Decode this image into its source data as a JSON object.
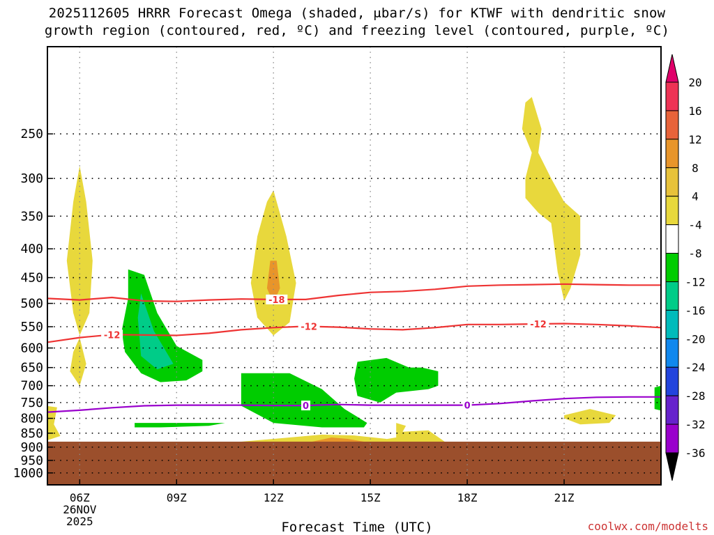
{
  "title": {
    "line1": "2025112605 HRRR Forecast Omega (shaded, μbar/s) for KTWF with dendritic snow",
    "line2": "growth region (contoured, red, ºC) and freezing level (contoured, purple, ºC)"
  },
  "xaxis_label": "Forecast Time (UTC)",
  "credit": "coolwx.com/modelts",
  "chart_data": {
    "type": "heatmap",
    "title": "2025112605 HRRR Forecast Omega (shaded, μbar/s) for KTWF with dendritic snow growth region (contoured, red, ºC) and freezing level (contoured, purple, ºC)",
    "xlabel": "Forecast Time (UTC)",
    "ylabel": "",
    "xlim_hours": [
      5,
      24
    ],
    "y_scale": "log",
    "ylim": [
      1050,
      175
    ],
    "y_ticks": [
      250,
      300,
      350,
      400,
      450,
      500,
      550,
      600,
      650,
      700,
      750,
      800,
      850,
      900,
      950,
      1000
    ],
    "x_ticks": [
      {
        "hour": 6,
        "label": "06Z",
        "sub": [
          "26NOV",
          "2025"
        ]
      },
      {
        "hour": 9,
        "label": "09Z"
      },
      {
        "hour": 12,
        "label": "12Z"
      },
      {
        "hour": 15,
        "label": "15Z"
      },
      {
        "hour": 18,
        "label": "18Z"
      },
      {
        "hour": 21,
        "label": "21Z"
      }
    ],
    "grid": true,
    "colorbar": {
      "levels": [
        {
          "label": "20",
          "color": "#ee3355"
        },
        {
          "label": "16",
          "color": "#e8633a"
        },
        {
          "label": "12",
          "color": "#e8952a"
        },
        {
          "label": "8",
          "color": "#e8c23a"
        },
        {
          "label": "4",
          "color": "#e8d83c"
        },
        {
          "label": "-4",
          "color": "#ffffff"
        },
        {
          "label": "-8",
          "color": "#00cc00"
        },
        {
          "label": "-12",
          "color": "#00cc88"
        },
        {
          "label": "-16",
          "color": "#00bbbb"
        },
        {
          "label": "-20",
          "color": "#1188ee"
        },
        {
          "label": "-24",
          "color": "#2244dd"
        },
        {
          "label": "-28",
          "color": "#6622cc"
        },
        {
          "label": "-32",
          "color": "#9900cc"
        },
        {
          "label": "-36",
          "color": "#aaaaaa"
        }
      ],
      "top_color": "#e0006a",
      "bottom_color": "#000000",
      "placement": "right"
    },
    "surface": {
      "color": "#9b4f2c",
      "pressure": 880
    },
    "omega_regions": [
      {
        "name": "positive",
        "color": "#e8d83c",
        "points": [
          [
            6.0,
            285
          ],
          [
            6.2,
            330
          ],
          [
            6.4,
            420
          ],
          [
            6.3,
            520
          ],
          [
            6.0,
            570
          ],
          [
            5.8,
            520
          ],
          [
            5.6,
            420
          ],
          [
            5.8,
            330
          ]
        ]
      },
      {
        "name": "positive",
        "color": "#e8d83c",
        "points": [
          [
            6.0,
            575
          ],
          [
            6.2,
            640
          ],
          [
            6.0,
            700
          ],
          [
            5.7,
            660
          ],
          [
            5.8,
            610
          ]
        ]
      },
      {
        "name": "positive",
        "color": "#e8d83c",
        "points": [
          [
            12.0,
            315
          ],
          [
            12.4,
            380
          ],
          [
            12.7,
            460
          ],
          [
            12.5,
            540
          ],
          [
            12.0,
            570
          ],
          [
            11.5,
            530
          ],
          [
            11.3,
            460
          ],
          [
            11.5,
            380
          ],
          [
            11.8,
            330
          ]
        ]
      },
      {
        "name": "positive",
        "color": "#e8952a",
        "points": [
          [
            11.9,
            420
          ],
          [
            12.1,
            420
          ],
          [
            12.2,
            470
          ],
          [
            12.0,
            500
          ],
          [
            11.8,
            470
          ]
        ]
      },
      {
        "name": "positive",
        "color": "#e8d83c",
        "points": [
          [
            20.0,
            215
          ],
          [
            20.3,
            245
          ],
          [
            20.2,
            270
          ],
          [
            20.6,
            300
          ],
          [
            21.0,
            330
          ],
          [
            21.5,
            350
          ],
          [
            21.5,
            410
          ],
          [
            21.2,
            470
          ],
          [
            21.0,
            495
          ],
          [
            20.8,
            440
          ],
          [
            20.6,
            360
          ],
          [
            20.2,
            345
          ],
          [
            19.8,
            325
          ],
          [
            19.8,
            300
          ],
          [
            20.0,
            270
          ],
          [
            19.7,
            245
          ],
          [
            19.8,
            220
          ]
        ]
      },
      {
        "name": "positive",
        "color": "#e8d83c",
        "points": [
          [
            21.0,
            790
          ],
          [
            21.8,
            770
          ],
          [
            22.6,
            790
          ],
          [
            22.4,
            815
          ],
          [
            21.5,
            820
          ],
          [
            21.0,
            800
          ]
        ]
      },
      {
        "name": "positive",
        "color": "#e8d83c",
        "points": [
          [
            4.95,
            760
          ],
          [
            5.3,
            765
          ],
          [
            5.2,
            820
          ],
          [
            5.4,
            860
          ],
          [
            5.0,
            875
          ]
        ]
      },
      {
        "name": "positive",
        "color": "#e8d83c",
        "points": [
          [
            15.8,
            815
          ],
          [
            16.1,
            825
          ],
          [
            16.0,
            845
          ],
          [
            16.8,
            840
          ],
          [
            17.3,
            880
          ],
          [
            15.0,
            880
          ],
          [
            15.8,
            865
          ]
        ]
      },
      {
        "name": "positive",
        "color": "#e8d83c",
        "points": [
          [
            11.0,
            880
          ],
          [
            12.5,
            865
          ],
          [
            13.5,
            855
          ],
          [
            14.5,
            858
          ],
          [
            15.5,
            870
          ],
          [
            15.5,
            880
          ]
        ]
      },
      {
        "name": "positive",
        "color": "#e8952a",
        "points": [
          [
            13.2,
            880
          ],
          [
            13.8,
            865
          ],
          [
            14.3,
            870
          ],
          [
            14.8,
            880
          ]
        ]
      },
      {
        "name": "negative",
        "color": "#00cc00",
        "points": [
          [
            7.5,
            435
          ],
          [
            8.0,
            445
          ],
          [
            8.4,
            520
          ],
          [
            9.0,
            595
          ],
          [
            9.8,
            630
          ],
          [
            9.8,
            660
          ],
          [
            9.3,
            685
          ],
          [
            8.5,
            690
          ],
          [
            7.9,
            665
          ],
          [
            7.4,
            610
          ],
          [
            7.3,
            560
          ],
          [
            7.5,
            490
          ]
        ]
      },
      {
        "name": "negative",
        "color": "#00cc88",
        "points": [
          [
            7.9,
            480
          ],
          [
            8.3,
            560
          ],
          [
            8.9,
            640
          ],
          [
            8.4,
            655
          ],
          [
            7.9,
            620
          ],
          [
            7.8,
            530
          ]
        ]
      },
      {
        "name": "negative",
        "color": "#00cc00",
        "points": [
          [
            11.0,
            665
          ],
          [
            12.5,
            665
          ],
          [
            13.5,
            710
          ],
          [
            14.2,
            770
          ],
          [
            14.9,
            815
          ],
          [
            14.8,
            830
          ],
          [
            13.5,
            830
          ],
          [
            12.0,
            815
          ],
          [
            11.0,
            760
          ]
        ]
      },
      {
        "name": "negative",
        "color": "#00cc00",
        "points": [
          [
            14.6,
            635
          ],
          [
            15.5,
            625
          ],
          [
            16.2,
            650
          ],
          [
            16.6,
            650
          ],
          [
            17.1,
            660
          ],
          [
            17.1,
            700
          ],
          [
            16.8,
            710
          ],
          [
            15.8,
            720
          ],
          [
            15.3,
            750
          ],
          [
            14.6,
            730
          ],
          [
            14.5,
            680
          ]
        ]
      },
      {
        "name": "negative",
        "color": "#00cc00",
        "points": [
          [
            7.7,
            815
          ],
          [
            9.5,
            815
          ],
          [
            10.5,
            815
          ],
          [
            10.0,
            825
          ],
          [
            8.5,
            830
          ],
          [
            7.7,
            830
          ]
        ]
      },
      {
        "name": "negative",
        "color": "#00cc00",
        "points": [
          [
            23.8,
            705
          ],
          [
            24.0,
            700
          ],
          [
            24.0,
            775
          ],
          [
            23.8,
            770
          ]
        ]
      }
    ],
    "isotherms": [
      {
        "name": "-18",
        "color": "#ee3333",
        "points": [
          [
            5,
            490
          ],
          [
            6,
            493
          ],
          [
            7,
            488
          ],
          [
            8,
            495
          ],
          [
            9,
            496
          ],
          [
            10,
            493
          ],
          [
            11,
            491
          ],
          [
            12,
            492
          ],
          [
            13,
            492
          ],
          [
            14,
            484
          ],
          [
            15,
            478
          ],
          [
            16,
            476
          ],
          [
            17,
            472
          ],
          [
            18,
            466
          ],
          [
            19,
            464
          ],
          [
            20,
            463
          ],
          [
            21,
            462
          ],
          [
            22,
            463
          ],
          [
            23,
            464
          ],
          [
            24,
            464
          ]
        ],
        "labels": [
          {
            "x": 12.1,
            "y": 492,
            "text": "-18"
          }
        ]
      },
      {
        "name": "-12",
        "color": "#ee3333",
        "points": [
          [
            5,
            586
          ],
          [
            6,
            575
          ],
          [
            7,
            568
          ],
          [
            8,
            569
          ],
          [
            9,
            570
          ],
          [
            10,
            565
          ],
          [
            11,
            557
          ],
          [
            12,
            552
          ],
          [
            13,
            549
          ],
          [
            14,
            551
          ],
          [
            15,
            555
          ],
          [
            16,
            557
          ],
          [
            17,
            552
          ],
          [
            18,
            545
          ],
          [
            19,
            545
          ],
          [
            20,
            544
          ],
          [
            21,
            543
          ],
          [
            22,
            545
          ],
          [
            23,
            548
          ],
          [
            24,
            552
          ]
        ],
        "labels": [
          {
            "x": 7.0,
            "y": 568,
            "text": "-12"
          },
          {
            "x": 13.1,
            "y": 549,
            "text": "-12"
          },
          {
            "x": 20.2,
            "y": 544,
            "text": "-12"
          }
        ]
      }
    ],
    "freezing_level": {
      "name": "0",
      "color": "#9900cc",
      "points": [
        [
          5,
          780
        ],
        [
          6,
          774
        ],
        [
          7,
          766
        ],
        [
          8,
          760
        ],
        [
          9,
          758
        ],
        [
          10,
          758
        ],
        [
          11,
          758
        ],
        [
          12,
          759
        ],
        [
          13,
          759
        ],
        [
          14,
          756
        ],
        [
          15,
          758
        ],
        [
          16,
          758
        ],
        [
          17,
          758
        ],
        [
          18,
          758
        ],
        [
          19,
          753
        ],
        [
          20,
          745
        ],
        [
          21,
          738
        ],
        [
          22,
          734
        ],
        [
          23,
          733
        ],
        [
          24,
          733
        ]
      ],
      "labels": [
        {
          "x": 13.0,
          "y": 759,
          "text": "0"
        },
        {
          "x": 18.0,
          "y": 758,
          "text": "0"
        }
      ]
    }
  }
}
